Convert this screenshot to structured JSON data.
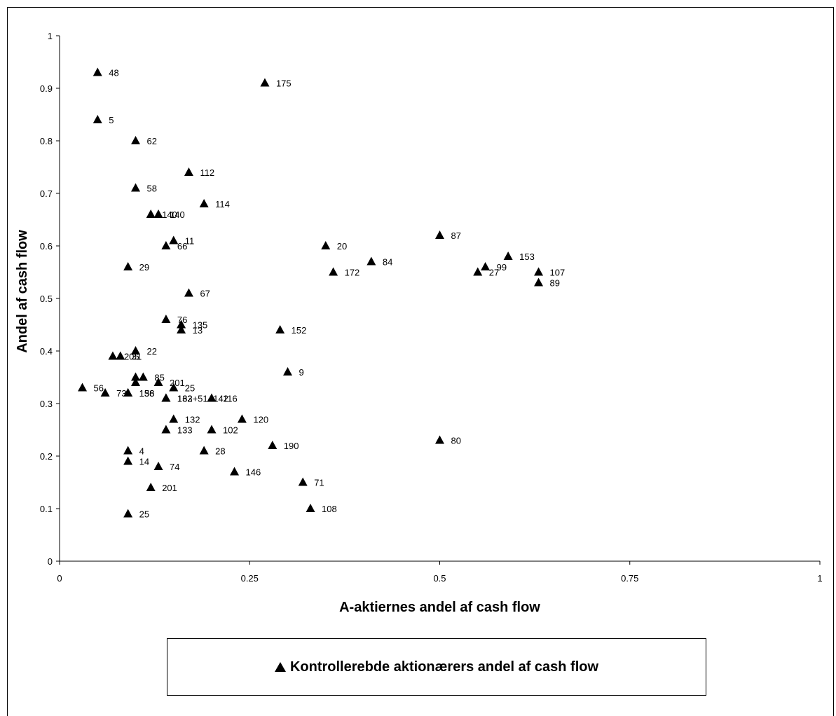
{
  "chart_data": {
    "type": "scatter",
    "xlabel": "A-aktiernes andel af cash flow",
    "ylabel": "Andel af cash flow",
    "xlim": [
      0,
      1
    ],
    "ylim": [
      0,
      1
    ],
    "x_ticks": [
      "0",
      "0.25",
      "0.5",
      "0.75",
      "1"
    ],
    "y_ticks": [
      "0",
      "0.1",
      "0.2",
      "0.3",
      "0.4",
      "0.5",
      "0.6",
      "0.7",
      "0.8",
      "0.9",
      "1"
    ],
    "grid": false,
    "legend_position": "bottom",
    "marker": "triangle",
    "color": "#000000",
    "series": [
      {
        "name": "Kontrollerebde aktionærers andel af cash flow",
        "points": [
          {
            "x": 0.05,
            "y": 0.93,
            "label": "48"
          },
          {
            "x": 0.27,
            "y": 0.91,
            "label": "175"
          },
          {
            "x": 0.05,
            "y": 0.84,
            "label": "5"
          },
          {
            "x": 0.1,
            "y": 0.8,
            "label": "62"
          },
          {
            "x": 0.17,
            "y": 0.74,
            "label": "112"
          },
          {
            "x": 0.1,
            "y": 0.71,
            "label": "58"
          },
          {
            "x": 0.19,
            "y": 0.68,
            "label": "114"
          },
          {
            "x": 0.12,
            "y": 0.66,
            "label": "140"
          },
          {
            "x": 0.13,
            "y": 0.66,
            "label": "140"
          },
          {
            "x": 0.15,
            "y": 0.61,
            "label": "11"
          },
          {
            "x": 0.14,
            "y": 0.6,
            "label": "66"
          },
          {
            "x": 0.35,
            "y": 0.6,
            "label": "20"
          },
          {
            "x": 0.5,
            "y": 0.62,
            "label": "87"
          },
          {
            "x": 0.59,
            "y": 0.58,
            "label": "153"
          },
          {
            "x": 0.41,
            "y": 0.57,
            "label": "84"
          },
          {
            "x": 0.56,
            "y": 0.56,
            "label": "99"
          },
          {
            "x": 0.09,
            "y": 0.56,
            "label": "29"
          },
          {
            "x": 0.36,
            "y": 0.55,
            "label": "172"
          },
          {
            "x": 0.55,
            "y": 0.55,
            "label": "27"
          },
          {
            "x": 0.63,
            "y": 0.55,
            "label": "107"
          },
          {
            "x": 0.63,
            "y": 0.53,
            "label": "89"
          },
          {
            "x": 0.17,
            "y": 0.51,
            "label": "67"
          },
          {
            "x": 0.14,
            "y": 0.46,
            "label": "76"
          },
          {
            "x": 0.16,
            "y": 0.45,
            "label": "135"
          },
          {
            "x": 0.16,
            "y": 0.44,
            "label": "13"
          },
          {
            "x": 0.29,
            "y": 0.44,
            "label": "152"
          },
          {
            "x": 0.07,
            "y": 0.39,
            "label": "205"
          },
          {
            "x": 0.08,
            "y": 0.39,
            "label": "31"
          },
          {
            "x": 0.1,
            "y": 0.4,
            "label": "22"
          },
          {
            "x": 0.3,
            "y": 0.36,
            "label": "9"
          },
          {
            "x": 0.11,
            "y": 0.35,
            "label": "85"
          },
          {
            "x": 0.1,
            "y": 0.35,
            "label": ""
          },
          {
            "x": 0.1,
            "y": 0.34,
            "label": ""
          },
          {
            "x": 0.13,
            "y": 0.34,
            "label": "201"
          },
          {
            "x": 0.15,
            "y": 0.33,
            "label": "25"
          },
          {
            "x": 0.03,
            "y": 0.33,
            "label": "56"
          },
          {
            "x": 0.06,
            "y": 0.32,
            "label": "73"
          },
          {
            "x": 0.09,
            "y": 0.32,
            "label": "136"
          },
          {
            "x": 0.09,
            "y": 0.32,
            "label": "158"
          },
          {
            "x": 0.14,
            "y": 0.31,
            "label": "132"
          },
          {
            "x": 0.2,
            "y": 0.31,
            "label": "116"
          },
          {
            "x": 0.14,
            "y": 0.31,
            "label": "163+51+142"
          },
          {
            "x": 0.15,
            "y": 0.27,
            "label": "132"
          },
          {
            "x": 0.24,
            "y": 0.27,
            "label": "120"
          },
          {
            "x": 0.14,
            "y": 0.25,
            "label": "133"
          },
          {
            "x": 0.2,
            "y": 0.25,
            "label": "102"
          },
          {
            "x": 0.5,
            "y": 0.23,
            "label": "80"
          },
          {
            "x": 0.28,
            "y": 0.22,
            "label": "190"
          },
          {
            "x": 0.09,
            "y": 0.21,
            "label": "4"
          },
          {
            "x": 0.19,
            "y": 0.21,
            "label": "28"
          },
          {
            "x": 0.09,
            "y": 0.19,
            "label": "14"
          },
          {
            "x": 0.13,
            "y": 0.18,
            "label": "74"
          },
          {
            "x": 0.23,
            "y": 0.17,
            "label": "146"
          },
          {
            "x": 0.32,
            "y": 0.15,
            "label": "71"
          },
          {
            "x": 0.12,
            "y": 0.14,
            "label": "201"
          },
          {
            "x": 0.33,
            "y": 0.1,
            "label": "108"
          },
          {
            "x": 0.09,
            "y": 0.09,
            "label": "25"
          }
        ]
      }
    ]
  }
}
